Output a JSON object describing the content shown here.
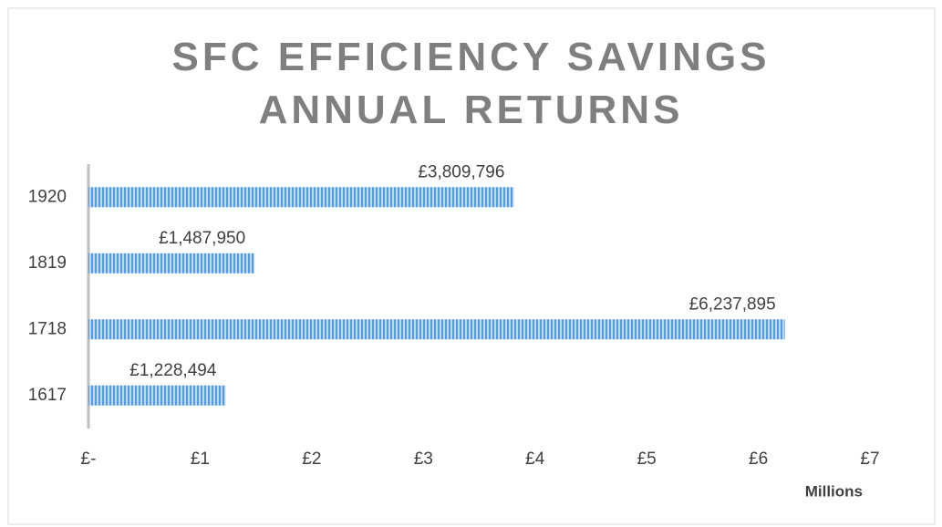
{
  "chart_data": {
    "type": "bar",
    "orientation": "horizontal",
    "title": "SFC EFFICIENCY SAVINGS ANNUAL RETURNS",
    "categories": [
      "1617",
      "1718",
      "1819",
      "1920"
    ],
    "values": [
      1.228494,
      6.237895,
      1.48795,
      3.809796
    ],
    "value_labels": [
      "£1,228,494",
      "£6,237,895",
      "£1,487,950",
      "£3,809,796"
    ],
    "color": "#5b9bd5",
    "xlim": [
      0,
      7
    ],
    "xticks": [
      {
        "value": 0,
        "label": "£-"
      },
      {
        "value": 1,
        "label": "£1"
      },
      {
        "value": 2,
        "label": "£2"
      },
      {
        "value": 3,
        "label": "£3"
      },
      {
        "value": 4,
        "label": "£4"
      },
      {
        "value": 5,
        "label": "£5"
      },
      {
        "value": 6,
        "label": "£6"
      },
      {
        "value": 7,
        "label": "£7"
      }
    ],
    "xlabel": "Millions",
    "grid": false
  }
}
